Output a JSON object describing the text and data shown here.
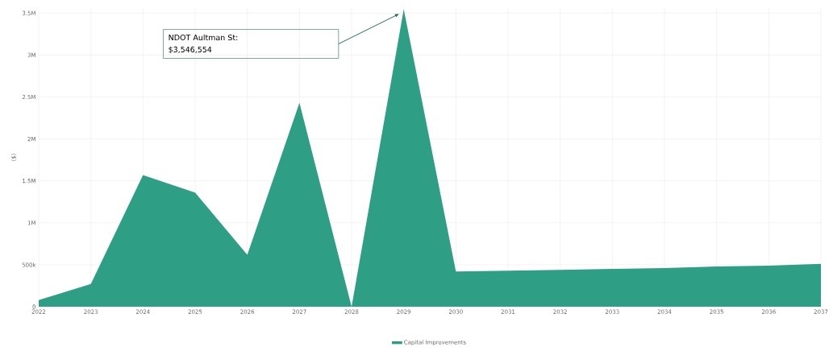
{
  "chart_data": {
    "type": "area",
    "ylabel": "($)",
    "categories": [
      "2022",
      "2023",
      "2024",
      "2025",
      "2026",
      "2027",
      "2028",
      "2029",
      "2030",
      "2031",
      "2032",
      "2033",
      "2034",
      "2035",
      "2036",
      "2037"
    ],
    "series": [
      {
        "name": "Capital Improvements",
        "color": "#2e9e85",
        "values": [
          80000,
          270000,
          1570000,
          1360000,
          620000,
          2430000,
          0,
          3546554,
          420000,
          430000,
          440000,
          450000,
          460000,
          480000,
          490000,
          510000
        ]
      }
    ],
    "ylim": [
      0,
      3560000
    ],
    "yticks": [
      0,
      {
        "value": 500000,
        "label": "500k"
      },
      {
        "value": 1000000,
        "label": "1M"
      },
      {
        "value": 1500000,
        "label": "1.5M"
      },
      {
        "value": 2000000,
        "label": "2M"
      },
      {
        "value": 2500000,
        "label": "2.5M"
      },
      {
        "value": 3000000,
        "label": "3M"
      },
      {
        "value": 3500000,
        "label": "3.5M"
      }
    ],
    "annotations": [
      "NDOT Aultman St: $3,546,554"
    ],
    "grid": true,
    "legend": "bottom"
  }
}
